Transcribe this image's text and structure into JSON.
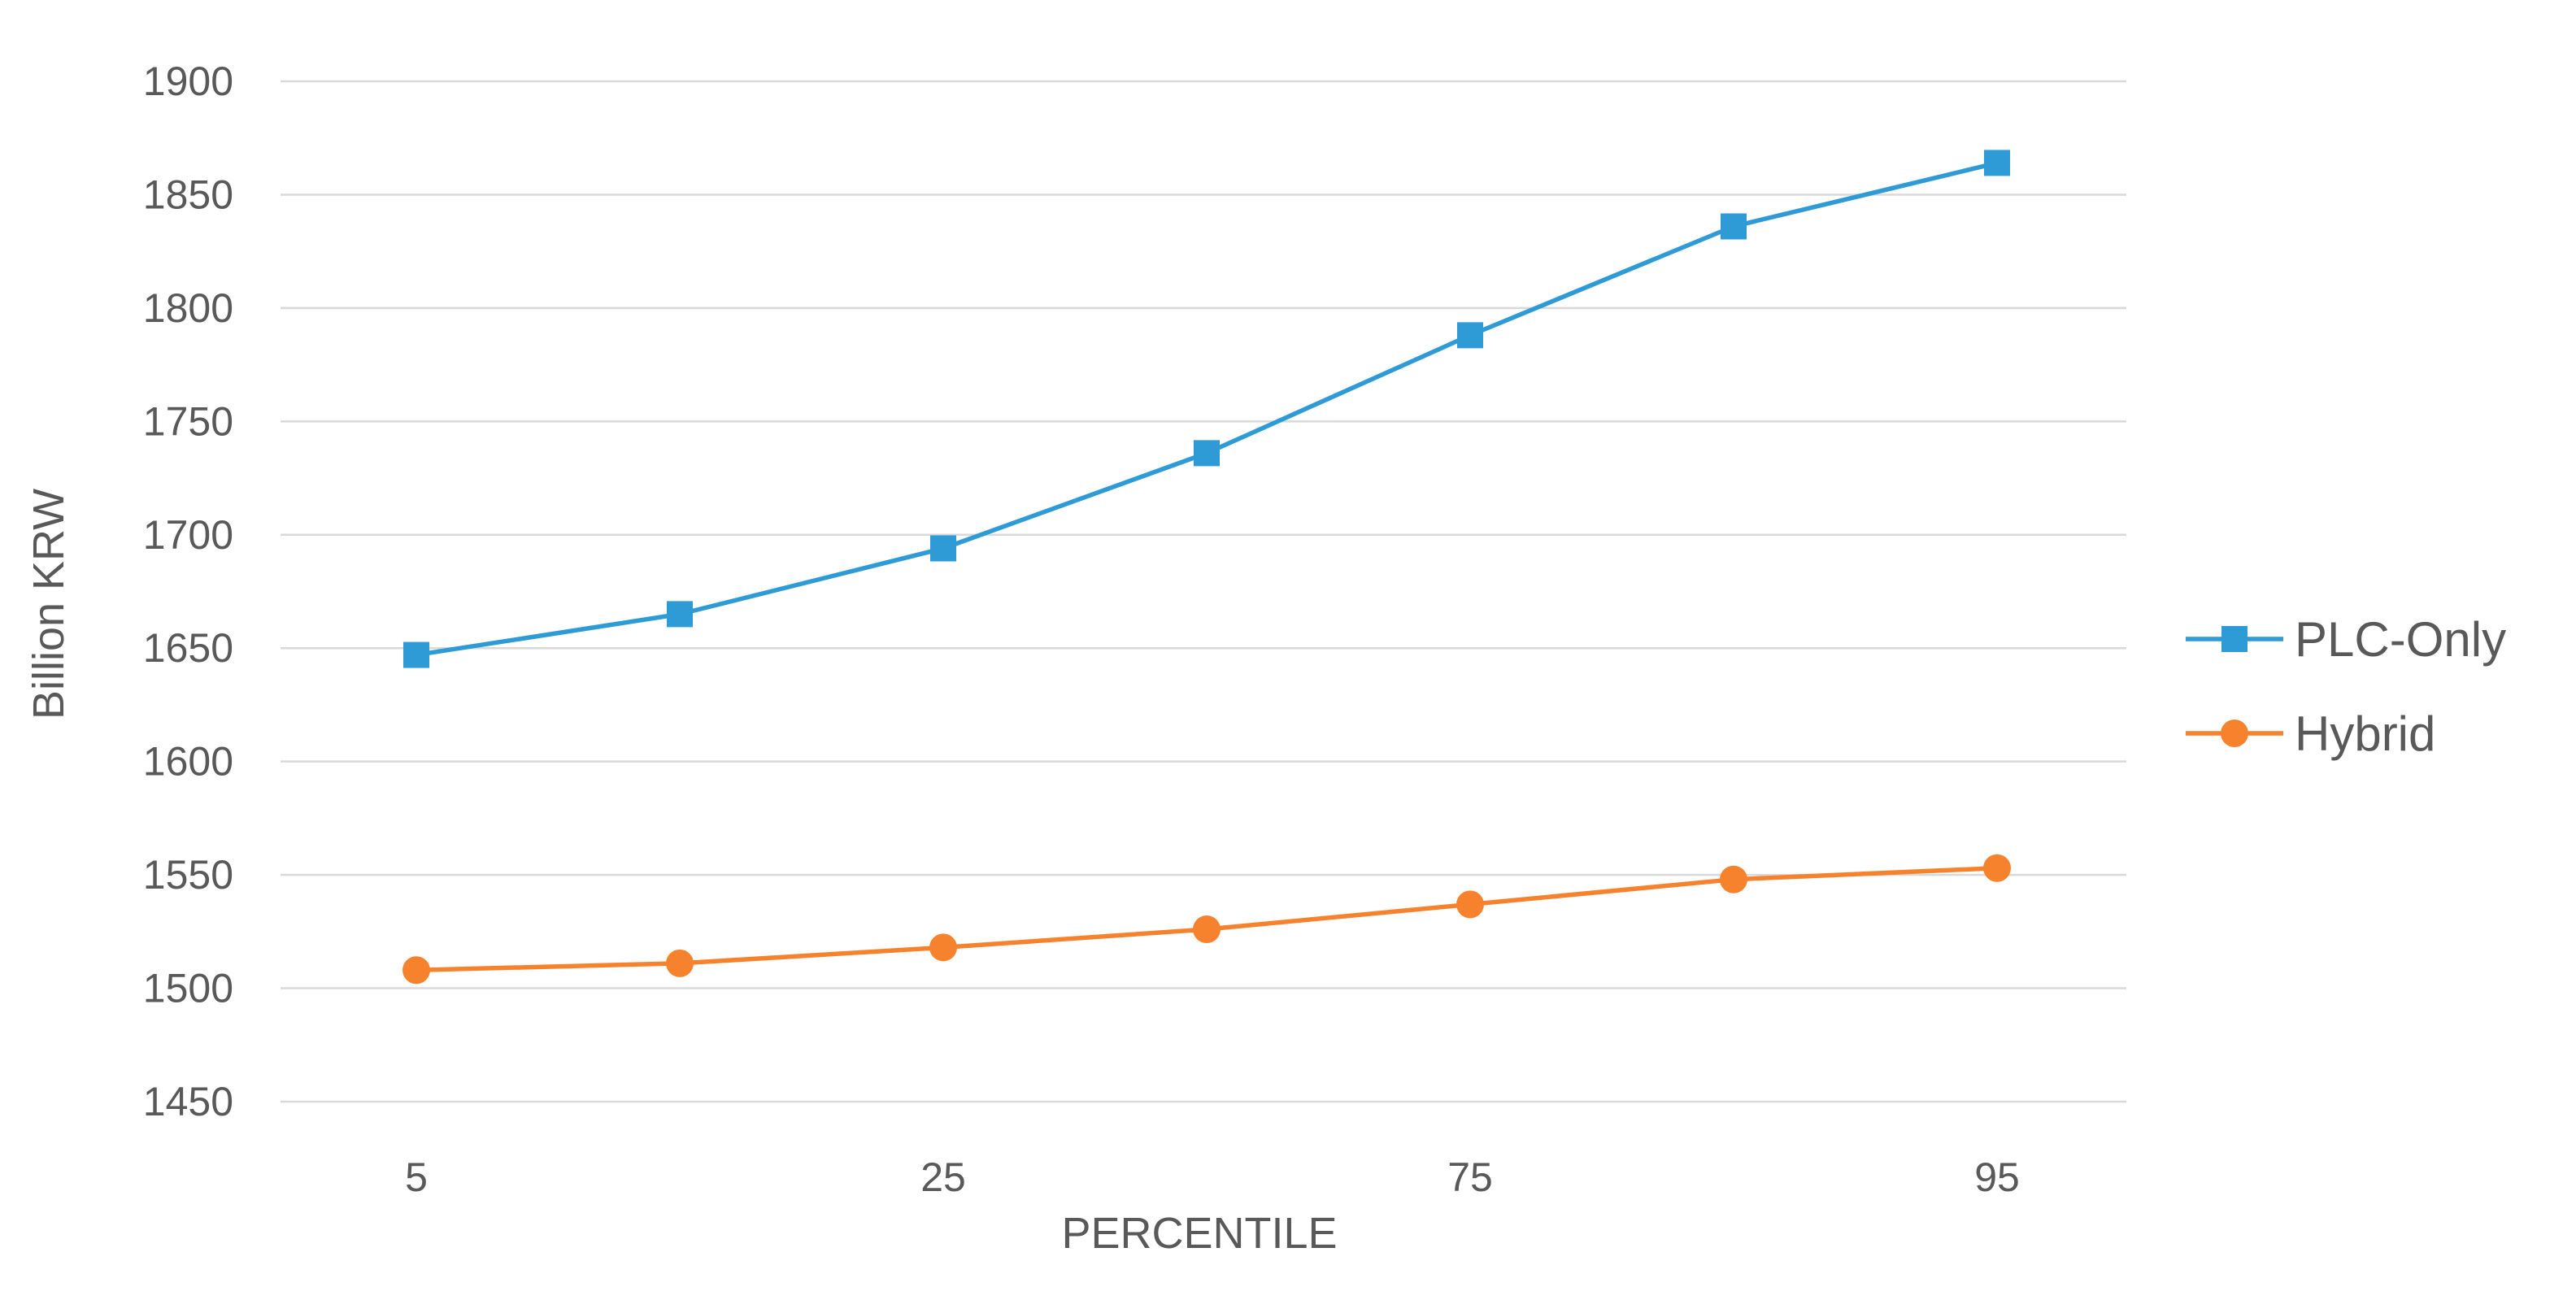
{
  "chart_data": {
    "type": "line",
    "title": "",
    "xlabel": "PERCENTILE",
    "ylabel": "Billion KRW",
    "ylim": [
      1450,
      1900
    ],
    "yticks": [
      1450,
      1500,
      1550,
      1600,
      1650,
      1700,
      1750,
      1800,
      1850,
      1900
    ],
    "categories": [
      "5",
      "",
      "25",
      "",
      "75",
      "",
      "95"
    ],
    "grid": true,
    "legend_position": "right",
    "series": [
      {
        "name": "PLC-Only",
        "color": "#2e9bd6",
        "marker": "square",
        "values": [
          1647,
          1665,
          1694,
          1736,
          1788,
          1836,
          1864
        ]
      },
      {
        "name": "Hybrid",
        "color": "#f7822e",
        "marker": "circle",
        "values": [
          1508,
          1511,
          1518,
          1526,
          1537,
          1548,
          1553
        ]
      }
    ]
  }
}
